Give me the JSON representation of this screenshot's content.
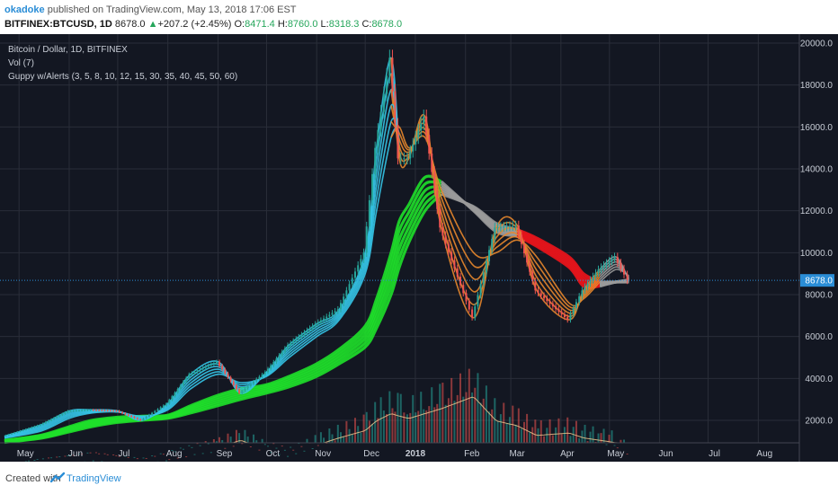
{
  "header": {
    "author": "okadoke",
    "published_text": "published on TradingView.com, May 13, 2018 17:06 EST",
    "symbol": "BITFINEX:BTCUSD, 1D",
    "last": "8678.0",
    "change_arrow": "▲",
    "change": "+207.2 (+2.45%)",
    "o_label": "O:",
    "o_value": "8471.4",
    "h_label": "H:",
    "h_value": "8760.0",
    "l_label": "L:",
    "l_value": "8318.3",
    "c_label": "C:",
    "c_value": "8678.0"
  },
  "legend": {
    "title": "Bitcoin / Dollar, 1D, BITFINEX",
    "vol": "Vol (7)",
    "guppy": "Guppy w/Alerts (3, 5, 8, 10, 12, 15, 30, 35, 40, 45, 50, 60)"
  },
  "footer": {
    "created_with": "Created with",
    "brand": "TradingView"
  },
  "colors": {
    "background": "#131722",
    "grid": "#2a2e39",
    "axis_text": "#c8cdd6",
    "up_candle": "#26a69a",
    "down_candle": "#ef5350",
    "fast_up": "#35c5e8",
    "fast_down": "#e8872c",
    "slow_up": "#1fe02a",
    "slow_down": "#e3141b",
    "slow_neutral": "#9a9a9a",
    "volume_ma": "#f0c68c",
    "price_line": "#2a8dd6",
    "price_label_bg": "#2a8dd6"
  },
  "chart_data": {
    "type": "line",
    "title": "Bitcoin / Dollar, 1D, BITFINEX",
    "xlabel": "",
    "ylabel": "",
    "ylim": [
      1000,
      20300
    ],
    "grid": true,
    "legend_position": "top-left",
    "y_ticks": [
      2000,
      4000,
      6000,
      8000,
      10000,
      12000,
      14000,
      16000,
      18000,
      20000
    ],
    "x_ticks": [
      "May",
      "Jun",
      "Jul",
      "Aug",
      "Sep",
      "Oct",
      "Nov",
      "Dec",
      "2018",
      "Feb",
      "Mar",
      "Apr",
      "May",
      "Jun",
      "Jul",
      "Aug"
    ],
    "last_price_label": "8678.0",
    "last_price": 8678,
    "x": [
      "2017-04-22",
      "2017-05-15",
      "2017-06-01",
      "2017-06-15",
      "2017-07-01",
      "2017-07-16",
      "2017-08-01",
      "2017-08-15",
      "2017-09-01",
      "2017-09-15",
      "2017-10-01",
      "2017-10-15",
      "2017-11-01",
      "2017-11-15",
      "2017-12-01",
      "2017-12-08",
      "2017-12-17",
      "2017-12-22",
      "2017-12-28",
      "2018-01-07",
      "2018-01-17",
      "2018-02-06",
      "2018-02-20",
      "2018-03-05",
      "2018-03-17",
      "2018-04-06",
      "2018-04-15",
      "2018-04-25",
      "2018-05-05",
      "2018-05-13"
    ],
    "series": [
      {
        "values": [
          1250,
          1800,
          2450,
          2500,
          2450,
          2000,
          2800,
          4200,
          4800,
          3300,
          4300,
          5600,
          6600,
          7300,
          10000,
          15000,
          19300,
          14500,
          14500,
          16500,
          11200,
          6900,
          11200,
          11300,
          8200,
          6800,
          8200,
          9200,
          9800,
          8678
        ]
      },
      {
        "values": [
          1150,
          1500,
          2100,
          2350,
          2400,
          2200,
          2500,
          3500,
          4200,
          3800,
          4100,
          5000,
          6000,
          6800,
          9000,
          12000,
          15500,
          16000,
          15000,
          15500,
          13000,
          10000,
          10000,
          10600,
          9800,
          7600,
          7800,
          8600,
          9200,
          8900
        ]
      },
      {
        "values": [
          1050,
          1300,
          1700,
          2000,
          2150,
          2200,
          2250,
          2700,
          3200,
          3500,
          3700,
          4100,
          4700,
          5400,
          6500,
          7800,
          10000,
          11500,
          12300,
          13600,
          13400,
          12000,
          11000,
          10800,
          10300,
          9300,
          8400,
          8400,
          8600,
          8700
        ]
      },
      {
        "values": [
          950,
          1150,
          1450,
          1700,
          1900,
          2000,
          2100,
          2350,
          2700,
          3000,
          3300,
          3600,
          4100,
          4700,
          5500,
          6400,
          8000,
          9300,
          10500,
          12000,
          12800,
          12200,
          11400,
          11100,
          10700,
          9800,
          9000,
          8600,
          8600,
          8600
        ]
      }
    ],
    "volume": {
      "type": "bar",
      "values": [
        300,
        500,
        600,
        700,
        600,
        500,
        700,
        900,
        1100,
        1400,
        1000,
        800,
        1200,
        1500,
        1800,
        2200,
        2500,
        2400,
        2300,
        2500,
        2700,
        3200,
        2200,
        2000,
        1600,
        1700,
        1500,
        1400,
        1300,
        900
      ]
    }
  }
}
